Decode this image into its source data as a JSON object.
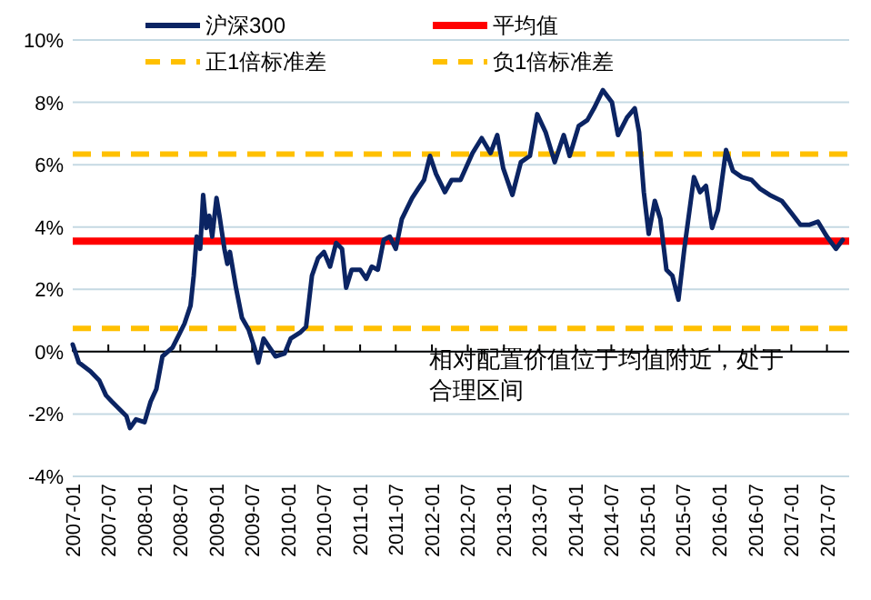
{
  "chart_data": {
    "type": "line",
    "x": [
      "2007-01-01",
      "2007-02-01",
      "2007-04-01",
      "2007-05-16",
      "2007-06-19",
      "2007-07-19",
      "2007-09-01",
      "2007-10-01",
      "2007-10-19",
      "2007-11-19",
      "2008-01-01",
      "2008-02-01",
      "2008-03-01",
      "2008-04-01",
      "2008-05-22",
      "2008-06-22",
      "2008-07-22",
      "2008-08-22",
      "2008-09-07",
      "2008-09-22",
      "2008-10-10",
      "2008-10-25",
      "2008-11-10",
      "2008-11-25",
      "2008-12-10",
      "2009-01-01",
      "2009-01-16",
      "2009-02-10",
      "2009-02-25",
      "2009-03-10",
      "2009-04-10",
      "2009-05-10",
      "2009-06-13",
      "2009-07-13",
      "2009-08-01",
      "2009-08-28",
      "2009-09-28",
      "2009-10-28",
      "2009-12-13",
      "2010-01-13",
      "2010-03-01",
      "2010-04-01",
      "2010-05-01",
      "2010-06-01",
      "2010-07-01",
      "2010-08-01",
      "2010-09-01",
      "2010-10-01",
      "2010-10-22",
      "2010-11-19",
      "2011-01-01",
      "2011-02-01",
      "2011-03-01",
      "2011-04-01",
      "2011-05-01",
      "2011-06-01",
      "2011-07-01",
      "2011-08-01",
      "2011-09-22",
      "2011-10-22",
      "2011-11-22",
      "2011-12-22",
      "2012-01-22",
      "2012-03-07",
      "2012-04-10",
      "2012-05-25",
      "2012-07-25",
      "2012-09-10",
      "2012-10-25",
      "2012-11-28",
      "2012-12-28",
      "2013-02-13",
      "2013-03-28",
      "2013-05-13",
      "2013-06-19",
      "2013-08-01",
      "2013-09-16",
      "2013-11-01",
      "2013-12-01",
      "2014-01-16",
      "2014-03-01",
      "2014-04-04",
      "2014-05-19",
      "2014-07-04",
      "2014-08-04",
      "2014-09-19",
      "2014-10-28",
      "2014-11-19",
      "2014-12-13",
      "2015-01-07",
      "2015-02-07",
      "2015-03-07",
      "2015-04-07",
      "2015-05-07",
      "2015-06-07",
      "2015-07-07",
      "2015-08-25",
      "2015-09-25",
      "2015-10-25",
      "2015-11-25",
      "2015-12-25",
      "2016-02-04",
      "2016-03-10",
      "2016-04-25",
      "2016-06-13",
      "2016-07-28",
      "2016-09-13",
      "2016-11-13",
      "2017-01-01",
      "2017-02-16",
      "2017-04-01",
      "2017-05-16",
      "2017-07-01",
      "2017-08-16",
      "2017-09-19"
    ],
    "series": [
      {
        "name": "沪深300",
        "color": "#0b2463",
        "values": [
          0.23,
          -0.35,
          -0.63,
          -0.92,
          -1.4,
          -1.6,
          -1.88,
          -2.07,
          -2.45,
          -2.17,
          -2.26,
          -1.6,
          -1.2,
          -0.15,
          0.13,
          0.52,
          0.9,
          1.48,
          2.44,
          3.69,
          3.3,
          5.03,
          3.97,
          4.36,
          3.69,
          4.93,
          4.36,
          3.3,
          2.82,
          3.2,
          2.05,
          1.09,
          0.71,
          0.13,
          -0.35,
          0.42,
          0.13,
          -0.15,
          -0.06,
          0.42,
          0.61,
          0.8,
          2.44,
          3.0,
          3.2,
          2.73,
          3.49,
          3.3,
          2.05,
          2.63,
          2.63,
          2.34,
          2.73,
          2.63,
          3.59,
          3.69,
          3.3,
          4.26,
          4.93,
          5.22,
          5.51,
          6.28,
          5.7,
          5.12,
          5.51,
          5.51,
          6.37,
          6.85,
          6.37,
          6.95,
          5.89,
          5.03,
          6.08,
          6.28,
          7.62,
          7.04,
          6.08,
          6.95,
          6.28,
          7.24,
          7.43,
          7.81,
          8.39,
          8.0,
          6.95,
          7.52,
          7.81,
          7.04,
          5.12,
          3.78,
          4.84,
          4.26,
          2.63,
          2.44,
          1.67,
          3.3,
          5.6,
          5.12,
          5.32,
          3.97,
          4.55,
          6.47,
          5.8,
          5.6,
          5.51,
          5.22,
          5.03,
          4.84,
          4.45,
          4.07,
          4.07,
          4.17,
          3.69,
          3.3,
          3.59
        ]
      }
    ],
    "ref_lines": [
      {
        "axis": "y",
        "value": 3.55,
        "label": "平均值",
        "color": "#ff0000",
        "line_style": "solid"
      },
      {
        "axis": "y",
        "value": 6.34,
        "label": "正1倍标准差",
        "color": "#ffc000",
        "line_style": "dashed"
      },
      {
        "axis": "y",
        "value": 0.75,
        "label": "负1倍标准差",
        "color": "#ffc000",
        "line_style": "dashed"
      }
    ],
    "xlim": [
      "2007-01-01",
      "2017-10-22"
    ],
    "xticks": [
      "2007-01",
      "2007-07",
      "2008-01",
      "2008-07",
      "2009-01",
      "2009-07",
      "2010-01",
      "2010-07",
      "2011-01",
      "2011-07",
      "2012-01",
      "2012-07",
      "2013-01",
      "2013-07",
      "2014-01",
      "2014-07",
      "2015-01",
      "2015-07",
      "2016-01",
      "2016-07",
      "2017-01",
      "2017-07"
    ],
    "ylim": [
      -4,
      10
    ],
    "yticks": [
      {
        "value": -4,
        "label": "-4%"
      },
      {
        "value": -2,
        "label": "-2%"
      },
      {
        "value": 0,
        "label": "0%"
      },
      {
        "value": 2,
        "label": "2%"
      },
      {
        "value": 4,
        "label": "4%"
      },
      {
        "value": 6,
        "label": "6%"
      },
      {
        "value": 8,
        "label": "8%"
      },
      {
        "value": 10,
        "label": "10%"
      }
    ],
    "annotations": [
      "相对配置价值位于均值附近，处于合理区间"
    ],
    "grid": "y",
    "legend": "top",
    "marker": "none",
    "line_style": "solid"
  }
}
